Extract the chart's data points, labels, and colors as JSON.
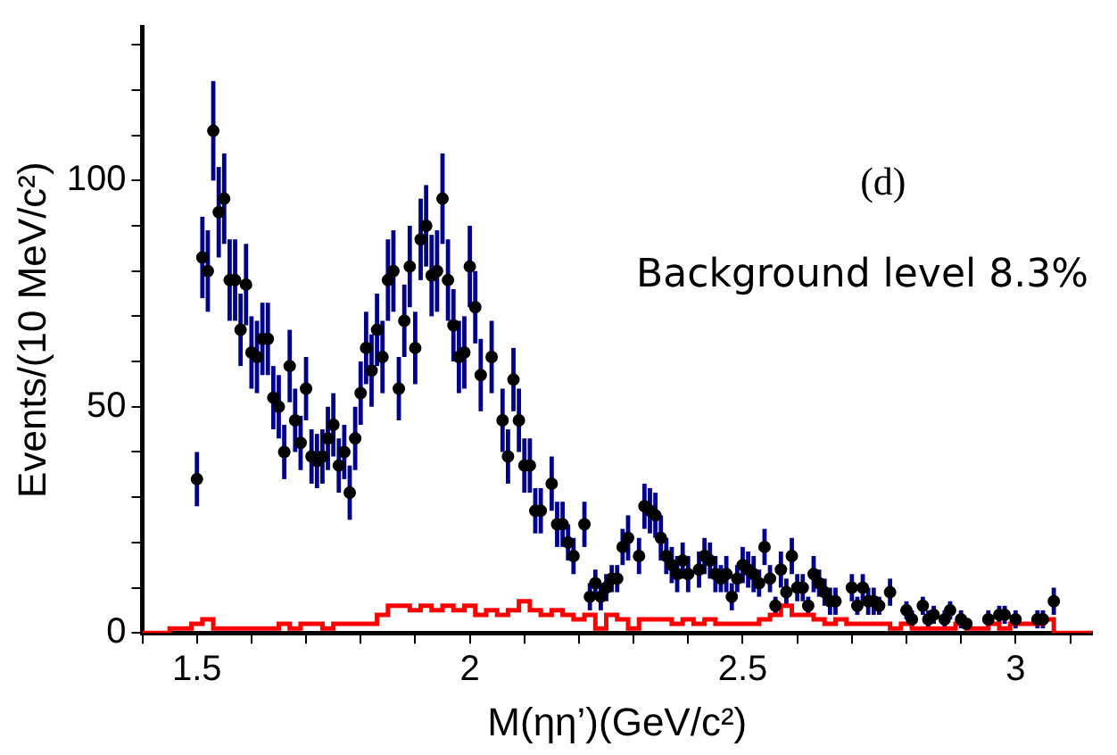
{
  "chart_data": {
    "type": "scatter",
    "xlabel": "M(ηη’)(GeV/c²)",
    "ylabel": "Events/(10 MeV/c²)",
    "annotations": [
      "(d)",
      "Background level 8.3%"
    ],
    "xlim": [
      1.4,
      3.14
    ],
    "xticks": [
      {
        "value": 1.4,
        "label": null
      },
      1.5,
      {
        "value": 1.6,
        "label": null
      },
      {
        "value": 1.7,
        "label": null
      },
      {
        "value": 1.8,
        "label": null
      },
      {
        "value": 1.9,
        "label": null
      },
      2,
      {
        "value": 2.1,
        "label": null
      },
      {
        "value": 2.2,
        "label": null
      },
      {
        "value": 2.3,
        "label": null
      },
      {
        "value": 2.4,
        "label": null
      },
      2.5,
      {
        "value": 2.6,
        "label": null
      },
      {
        "value": 2.7,
        "label": null
      },
      {
        "value": 2.8,
        "label": null
      },
      {
        "value": 2.9,
        "label": null
      },
      3,
      {
        "value": 3.1,
        "label": null
      }
    ],
    "ylim": [
      0,
      134
    ],
    "yticks": [
      0,
      {
        "value": 10,
        "label": null
      },
      {
        "value": 20,
        "label": null
      },
      {
        "value": 30,
        "label": null
      },
      {
        "value": 40,
        "label": null
      },
      50,
      {
        "value": 60,
        "label": null
      },
      {
        "value": 70,
        "label": null
      },
      {
        "value": 80,
        "label": null
      },
      {
        "value": 90,
        "label": null
      },
      100,
      {
        "value": 110,
        "label": null
      },
      {
        "value": 120,
        "label": null
      },
      {
        "value": 130,
        "label": null
      }
    ],
    "grid": false,
    "legend": false,
    "series": [
      {
        "type": "step",
        "color": "#ff0000",
        "x": [
          1.4,
          1.42,
          1.44,
          1.46,
          1.48,
          1.5,
          1.52,
          1.54,
          1.56,
          1.58,
          1.6,
          1.62,
          1.64,
          1.66,
          1.68,
          1.7,
          1.72,
          1.74,
          1.76,
          1.78,
          1.8,
          1.82,
          1.84,
          1.86,
          1.88,
          1.9,
          1.92,
          1.94,
          1.96,
          1.98,
          2,
          2.02,
          2.04,
          2.06,
          2.08,
          2.1,
          2.12,
          2.14,
          2.16,
          2.18,
          2.2,
          2.22,
          2.24,
          2.26,
          2.28,
          2.3,
          2.32,
          2.34,
          2.36,
          2.38,
          2.4,
          2.42,
          2.44,
          2.46,
          2.48,
          2.5,
          2.52,
          2.54,
          2.56,
          2.58,
          2.6,
          2.62,
          2.64,
          2.66,
          2.68,
          2.7,
          2.72,
          2.74,
          2.76,
          2.78,
          2.8,
          2.82,
          2.84,
          2.86,
          2.88,
          2.9,
          2.92,
          2.94,
          2.96,
          2.98,
          3,
          3.02,
          3.04,
          3.06,
          3.08,
          3.1,
          3.12,
          3.14
        ],
        "values": [
          0,
          0,
          0,
          1,
          1,
          2,
          3,
          1,
          1,
          1,
          1,
          1,
          1,
          2,
          1,
          2,
          2,
          1,
          2,
          2,
          2,
          2,
          4,
          6,
          6,
          5,
          6,
          5,
          6,
          5,
          6,
          4,
          5,
          4,
          5,
          7,
          5,
          4,
          5,
          4,
          3,
          4,
          1,
          4,
          3,
          1,
          3,
          3,
          3,
          2,
          3,
          2,
          3,
          2,
          2,
          2,
          2,
          3,
          4,
          6,
          4,
          4,
          3,
          2,
          3,
          2,
          2,
          2,
          2,
          1,
          2,
          1,
          1,
          1,
          1,
          2,
          1,
          1,
          2,
          1,
          2,
          2,
          2,
          3,
          0,
          0,
          0,
          0
        ]
      },
      {
        "type": "scatter",
        "color": "#000000",
        "marker": "circle",
        "x": [
          1.5,
          1.51,
          1.52,
          1.53,
          1.54,
          1.55,
          1.56,
          1.57,
          1.58,
          1.59,
          1.6,
          1.61,
          1.62,
          1.63,
          1.64,
          1.65,
          1.66,
          1.67,
          1.68,
          1.69,
          1.7,
          1.71,
          1.72,
          1.73,
          1.74,
          1.75,
          1.76,
          1.77,
          1.78,
          1.79,
          1.8,
          1.81,
          1.82,
          1.83,
          1.84,
          1.85,
          1.86,
          1.87,
          1.88,
          1.89,
          1.9,
          1.91,
          1.92,
          1.93,
          1.94,
          1.95,
          1.96,
          1.97,
          1.98,
          1.99,
          2,
          2.01,
          2.02,
          2.04,
          2.06,
          2.07,
          2.08,
          2.09,
          2.1,
          2.11,
          2.12,
          2.13,
          2.15,
          2.16,
          2.17,
          2.18,
          2.19,
          2.21,
          2.22,
          2.23,
          2.24,
          2.25,
          2.26,
          2.27,
          2.28,
          2.29,
          2.31,
          2.32,
          2.33,
          2.34,
          2.35,
          2.36,
          2.37,
          2.38,
          2.39,
          2.4,
          2.42,
          2.43,
          2.44,
          2.45,
          2.46,
          2.47,
          2.48,
          2.49,
          2.5,
          2.51,
          2.52,
          2.53,
          2.54,
          2.55,
          2.56,
          2.57,
          2.58,
          2.59,
          2.6,
          2.61,
          2.62,
          2.63,
          2.64,
          2.65,
          2.66,
          2.67,
          2.7,
          2.71,
          2.72,
          2.73,
          2.74,
          2.75,
          2.77,
          2.8,
          2.81,
          2.83,
          2.84,
          2.85,
          2.87,
          2.88,
          2.9,
          2.91,
          2.95,
          2.97,
          2.98,
          3,
          3.04,
          3.05,
          3.07
        ],
        "values": [
          34,
          83,
          80,
          111,
          93,
          96,
          78,
          78,
          67,
          77,
          62,
          61,
          65,
          65,
          52,
          50,
          40,
          59,
          47,
          42,
          54,
          39,
          38,
          39,
          43,
          46,
          37,
          40,
          31,
          43,
          53,
          63,
          58,
          67,
          61,
          78,
          80,
          54,
          69,
          81,
          63,
          87,
          90,
          79,
          80,
          96,
          78,
          68,
          61,
          62,
          81,
          72,
          57,
          61,
          47,
          39,
          56,
          47,
          37,
          37,
          27,
          27,
          33,
          24,
          24,
          20,
          17,
          24,
          8,
          11,
          8,
          10,
          12,
          12,
          19,
          21,
          17,
          28,
          27,
          26,
          21,
          17,
          15,
          13,
          16,
          13,
          14,
          17,
          16,
          13,
          12,
          13,
          8,
          12,
          15,
          14,
          13,
          11,
          19,
          12,
          6,
          14,
          9,
          17,
          10,
          10,
          6,
          13,
          11,
          9,
          7,
          7,
          10,
          6,
          10,
          7,
          7,
          6,
          9,
          5,
          3,
          6,
          3,
          4,
          3,
          5,
          3,
          2,
          3,
          4,
          4,
          3,
          3,
          3,
          7
        ],
        "errors": [
          6,
          9,
          9,
          11,
          10,
          10,
          9,
          9,
          8,
          9,
          8,
          8,
          8,
          8,
          7,
          7,
          6,
          8,
          7,
          6,
          7,
          6,
          6,
          6,
          7,
          7,
          6,
          6,
          6,
          7,
          7,
          8,
          8,
          8,
          8,
          9,
          9,
          7,
          8,
          9,
          8,
          9,
          9,
          9,
          9,
          10,
          9,
          8,
          8,
          8,
          9,
          8,
          8,
          8,
          7,
          6,
          7,
          7,
          6,
          6,
          5,
          5,
          6,
          5,
          5,
          4,
          4,
          5,
          3,
          3,
          3,
          3,
          3,
          3,
          4,
          5,
          4,
          5,
          5,
          5,
          5,
          4,
          4,
          4,
          4,
          4,
          4,
          4,
          4,
          4,
          3,
          4,
          3,
          3,
          4,
          4,
          4,
          3,
          4,
          3,
          2,
          4,
          3,
          4,
          3,
          3,
          2,
          4,
          3,
          3,
          3,
          3,
          3,
          2,
          3,
          3,
          3,
          2,
          3,
          2,
          2,
          2,
          2,
          2,
          2,
          2,
          2,
          null,
          2,
          2,
          2,
          2,
          2,
          2,
          3
        ]
      }
    ]
  }
}
